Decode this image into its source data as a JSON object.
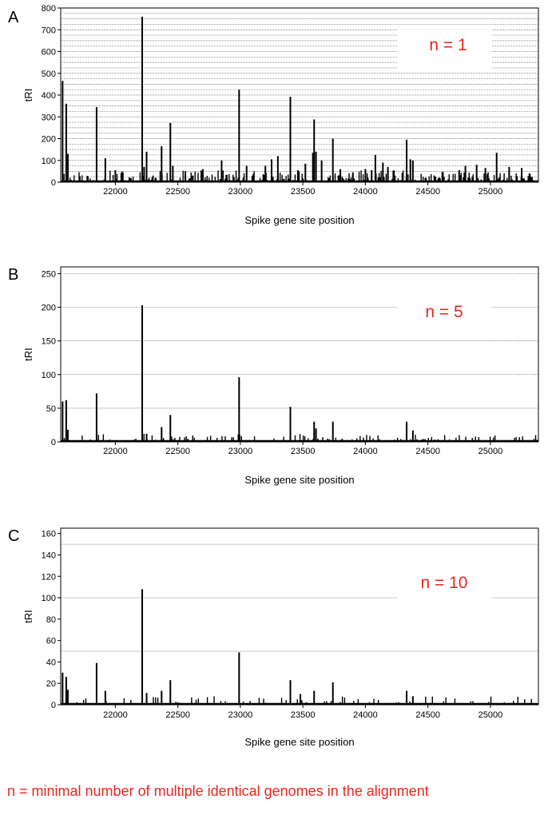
{
  "caption": "n = minimal number of multiple identical genomes in the alignment",
  "colors": {
    "bars": "#000000",
    "annotation": "#e8261f",
    "grid": "#666666"
  },
  "chart_data": [
    {
      "type": "bar",
      "panel": "A",
      "annotation": "n = 1",
      "xlabel": "Spike gene site position",
      "ylabel": "tRI",
      "xlim": [
        21563,
        25384
      ],
      "ylim": [
        0,
        800
      ],
      "yticks": [
        0,
        100,
        200,
        300,
        400,
        500,
        600,
        700,
        800
      ],
      "xticks": [
        22000,
        22500,
        23000,
        23500,
        24000,
        24500,
        25000
      ],
      "grid": [
        25,
        50,
        75,
        100,
        125,
        150,
        175,
        200,
        225,
        250,
        275,
        300,
        325,
        350,
        375,
        400,
        425,
        450,
        475,
        500,
        525,
        550,
        575,
        600,
        625,
        650,
        675,
        700,
        725,
        750,
        775,
        800
      ],
      "peaks": [
        [
          21578,
          465
        ],
        [
          21607,
          360
        ],
        [
          21620,
          130
        ],
        [
          21850,
          345
        ],
        [
          21920,
          110
        ],
        [
          22000,
          55
        ],
        [
          22215,
          760
        ],
        [
          22230,
          70
        ],
        [
          22250,
          140
        ],
        [
          22320,
          20
        ],
        [
          22370,
          165
        ],
        [
          22440,
          272
        ],
        [
          22460,
          75
        ],
        [
          22560,
          50
        ],
        [
          22610,
          30
        ],
        [
          22700,
          60
        ],
        [
          22850,
          100
        ],
        [
          22990,
          425
        ],
        [
          23050,
          75
        ],
        [
          23200,
          75
        ],
        [
          23250,
          105
        ],
        [
          23300,
          120
        ],
        [
          23400,
          392
        ],
        [
          23460,
          55
        ],
        [
          23520,
          85
        ],
        [
          23580,
          135
        ],
        [
          23590,
          288
        ],
        [
          23605,
          140
        ],
        [
          23650,
          100
        ],
        [
          23740,
          200
        ],
        [
          23800,
          60
        ],
        [
          23900,
          45
        ],
        [
          24000,
          60
        ],
        [
          24050,
          55
        ],
        [
          24080,
          125
        ],
        [
          24140,
          90
        ],
        [
          24180,
          70
        ],
        [
          24330,
          195
        ],
        [
          24360,
          105
        ],
        [
          24380,
          100
        ],
        [
          24480,
          20
        ],
        [
          24560,
          25
        ],
        [
          24750,
          55
        ],
        [
          24800,
          75
        ],
        [
          24890,
          80
        ],
        [
          24960,
          65
        ],
        [
          25050,
          135
        ],
        [
          25150,
          70
        ],
        [
          25250,
          65
        ]
      ],
      "noise_max": 55,
      "noise_step": 8,
      "seed": 11
    },
    {
      "type": "bar",
      "panel": "B",
      "annotation": "n = 5",
      "xlabel": "Spike gene site position",
      "ylabel": "tRI",
      "xlim": [
        21563,
        25384
      ],
      "ylim": [
        0,
        260
      ],
      "yticks": [
        0,
        50,
        100,
        150,
        200,
        250
      ],
      "xticks": [
        22000,
        22500,
        23000,
        23500,
        24000,
        24500,
        25000
      ],
      "grid": [
        50,
        100,
        150,
        200,
        250
      ],
      "peaks": [
        [
          21578,
          60
        ],
        [
          21607,
          62
        ],
        [
          21620,
          18
        ],
        [
          21850,
          72
        ],
        [
          22215,
          203
        ],
        [
          22250,
          12
        ],
        [
          22370,
          22
        ],
        [
          22440,
          40
        ],
        [
          22990,
          96
        ],
        [
          23400,
          52
        ],
        [
          23590,
          30
        ],
        [
          23605,
          20
        ],
        [
          23740,
          30
        ],
        [
          24330,
          30
        ],
        [
          24380,
          17
        ]
      ],
      "noise_max": 12,
      "noise_step": 13,
      "seed": 23
    },
    {
      "type": "bar",
      "panel": "C",
      "annotation": "n = 10",
      "xlabel": "Spike gene site position",
      "ylabel": "tRI",
      "xlim": [
        21563,
        25384
      ],
      "ylim": [
        0,
        165
      ],
      "yticks": [
        0,
        20,
        40,
        60,
        80,
        100,
        120,
        140,
        160
      ],
      "xticks": [
        22000,
        22500,
        23000,
        23500,
        24000,
        24500,
        25000
      ],
      "grid": [
        50,
        100,
        150
      ],
      "peaks": [
        [
          21578,
          30
        ],
        [
          21607,
          26
        ],
        [
          21620,
          14
        ],
        [
          21850,
          39
        ],
        [
          21920,
          13
        ],
        [
          22215,
          108
        ],
        [
          22250,
          11
        ],
        [
          22370,
          13
        ],
        [
          22440,
          23
        ],
        [
          22990,
          49
        ],
        [
          23400,
          23
        ],
        [
          23480,
          10
        ],
        [
          23590,
          13
        ],
        [
          23740,
          21
        ],
        [
          24330,
          13
        ],
        [
          24380,
          8
        ]
      ],
      "noise_max": 8,
      "noise_step": 18,
      "seed": 37
    }
  ]
}
